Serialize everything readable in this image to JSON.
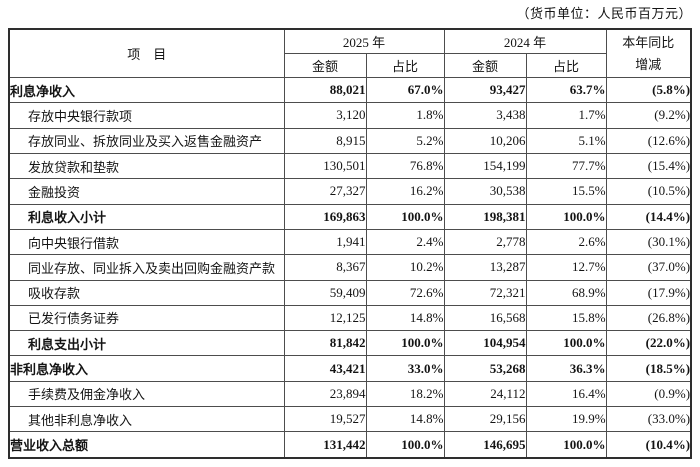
{
  "unit_note": "（货币单位：人民币百万元）",
  "table": {
    "headers": {
      "item": "项　目",
      "year_2025": "2025 年",
      "year_2024": "2024 年",
      "amount": "金额",
      "proportion": "占比",
      "yoy_line1": "本年同比",
      "yoy_line2": "增减"
    },
    "rows": [
      {
        "label": "利息净收入",
        "bold": true,
        "indent": false,
        "amount_2025": "88,021",
        "pct_2025": "67.0%",
        "amount_2024": "93,427",
        "pct_2024": "63.7%",
        "yoy": "(5.8%)"
      },
      {
        "label": "存放中央银行款项",
        "bold": false,
        "indent": true,
        "amount_2025": "3,120",
        "pct_2025": "1.8%",
        "amount_2024": "3,438",
        "pct_2024": "1.7%",
        "yoy": "(9.2%)"
      },
      {
        "label": "存放同业、拆放同业及买入返售金融资产",
        "bold": false,
        "indent": true,
        "amount_2025": "8,915",
        "pct_2025": "5.2%",
        "amount_2024": "10,206",
        "pct_2024": "5.1%",
        "yoy": "(12.6%)"
      },
      {
        "label": "发放贷款和垫款",
        "bold": false,
        "indent": true,
        "amount_2025": "130,501",
        "pct_2025": "76.8%",
        "amount_2024": "154,199",
        "pct_2024": "77.7%",
        "yoy": "(15.4%)"
      },
      {
        "label": "金融投资",
        "bold": false,
        "indent": true,
        "amount_2025": "27,327",
        "pct_2025": "16.2%",
        "amount_2024": "30,538",
        "pct_2024": "15.5%",
        "yoy": "(10.5%)"
      },
      {
        "label": "利息收入小计",
        "bold": true,
        "indent": true,
        "amount_2025": "169,863",
        "pct_2025": "100.0%",
        "amount_2024": "198,381",
        "pct_2024": "100.0%",
        "yoy": "(14.4%)"
      },
      {
        "label": "向中央银行借款",
        "bold": false,
        "indent": true,
        "amount_2025": "1,941",
        "pct_2025": "2.4%",
        "amount_2024": "2,778",
        "pct_2024": "2.6%",
        "yoy": "(30.1%)"
      },
      {
        "label": "同业存放、同业拆入及卖出回购金融资产款",
        "bold": false,
        "indent": true,
        "amount_2025": "8,367",
        "pct_2025": "10.2%",
        "amount_2024": "13,287",
        "pct_2024": "12.7%",
        "yoy": "(37.0%)"
      },
      {
        "label": "吸收存款",
        "bold": false,
        "indent": true,
        "amount_2025": "59,409",
        "pct_2025": "72.6%",
        "amount_2024": "72,321",
        "pct_2024": "68.9%",
        "yoy": "(17.9%)"
      },
      {
        "label": "已发行债务证券",
        "bold": false,
        "indent": true,
        "amount_2025": "12,125",
        "pct_2025": "14.8%",
        "amount_2024": "16,568",
        "pct_2024": "15.8%",
        "yoy": "(26.8%)"
      },
      {
        "label": "利息支出小计",
        "bold": true,
        "indent": true,
        "amount_2025": "81,842",
        "pct_2025": "100.0%",
        "amount_2024": "104,954",
        "pct_2024": "100.0%",
        "yoy": "(22.0%)"
      },
      {
        "label": "非利息净收入",
        "bold": true,
        "indent": false,
        "amount_2025": "43,421",
        "pct_2025": "33.0%",
        "amount_2024": "53,268",
        "pct_2024": "36.3%",
        "yoy": "(18.5%)"
      },
      {
        "label": "手续费及佣金净收入",
        "bold": false,
        "indent": true,
        "amount_2025": "23,894",
        "pct_2025": "18.2%",
        "amount_2024": "24,112",
        "pct_2024": "16.4%",
        "yoy": "(0.9%)"
      },
      {
        "label": "其他非利息净收入",
        "bold": false,
        "indent": true,
        "amount_2025": "19,527",
        "pct_2025": "14.8%",
        "amount_2024": "29,156",
        "pct_2024": "19.9%",
        "yoy": "(33.0%)"
      },
      {
        "label": "营业收入总额",
        "bold": true,
        "indent": false,
        "amount_2025": "131,442",
        "pct_2025": "100.0%",
        "amount_2024": "146,695",
        "pct_2024": "100.0%",
        "yoy": "(10.4%)"
      }
    ],
    "colors": {
      "text": "#141414",
      "border_outer": "#2e2e2e",
      "border_inner": "#4d4d4d",
      "background": "#ffffff"
    }
  }
}
